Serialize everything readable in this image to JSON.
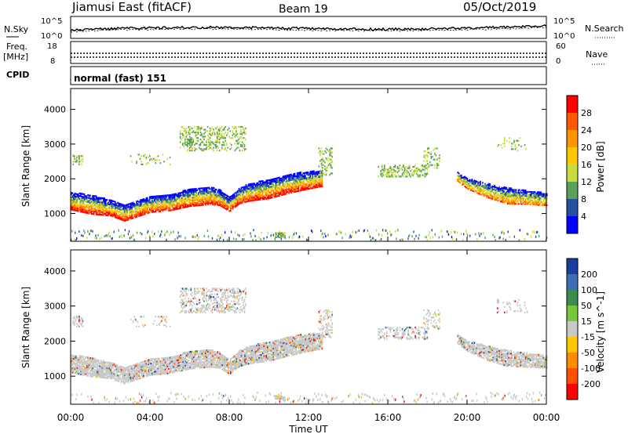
{
  "header": {
    "station": "Jiamusi East (fitACF)",
    "beam": "Beam 19",
    "date": "05/Oct/2019"
  },
  "noise_panel": {
    "left_label": "N.Sky",
    "right_label": "N.Search",
    "left_ticks": [
      "10^5",
      "10^0"
    ],
    "right_ticks": [
      "10^5",
      "10^0"
    ]
  },
  "freq_panel": {
    "left_label": "Freq.",
    "left_unit": "[MHz]",
    "right_label": "Nave",
    "left_ticks": [
      "18",
      "8"
    ],
    "right_ticks": [
      "60",
      "0"
    ],
    "cpid_label": "CPID"
  },
  "cpid_text": "normal (fast) 151",
  "chart_data": {
    "type": "heatmap",
    "xlabel": "Time UT",
    "x_ticks": [
      "00:00",
      "04:00",
      "08:00",
      "12:00",
      "16:00",
      "20:00",
      "00:00"
    ],
    "x_range_hours": [
      0,
      24
    ],
    "panels": [
      {
        "name": "power",
        "ylabel": "Slant Range [km]",
        "y_ticks": [
          "4000",
          "3000",
          "2000",
          "1000"
        ],
        "ylim": [
          200,
          4600
        ],
        "colorbar_label": "Power [dB]",
        "colorbar_ticks": [
          "28",
          "24",
          "20",
          "16",
          "12",
          "8",
          "4"
        ],
        "colorbar_colors": [
          "#ff0000",
          "#ff5a00",
          "#ff9400",
          "#ffc800",
          "#c8dc3c",
          "#5aa05a",
          "#2850a0",
          "#0000ff"
        ],
        "colorbar_range": [
          0,
          30
        ]
      },
      {
        "name": "velocity",
        "ylabel": "Slant Range [km]",
        "y_ticks": [
          "4000",
          "3000",
          "2000",
          "1000"
        ],
        "ylim": [
          200,
          4600
        ],
        "colorbar_label": "Velocity [m s^-1]",
        "colorbar_ticks": [
          "200",
          "100",
          "50",
          "15",
          "-15",
          "-50",
          "-100",
          "-200"
        ],
        "colorbar_colors": [
          "#1e3ca0",
          "#3c6eb4",
          "#3c8c50",
          "#78c83c",
          "#c8c8c8",
          "#ffc800",
          "#ff8c00",
          "#ff5000",
          "#ff0000"
        ]
      }
    ],
    "echo_band": {
      "time_h": [
        0,
        1,
        2,
        2.7,
        4,
        5,
        6,
        7,
        7.5,
        8,
        8.5,
        9,
        10,
        11,
        12,
        12.7
      ],
      "center_km": [
        1350,
        1250,
        1150,
        1000,
        1250,
        1300,
        1450,
        1500,
        1450,
        1250,
        1500,
        1600,
        1700,
        1850,
        1950,
        2000
      ],
      "width_km": [
        500,
        550,
        450,
        450,
        450,
        450,
        500,
        500,
        450,
        400,
        450,
        500,
        550,
        550,
        500,
        450
      ]
    },
    "late_band": {
      "time_h": [
        19.5,
        20,
        21,
        22,
        23,
        24
      ],
      "center_km": [
        2050,
        1850,
        1650,
        1500,
        1450,
        1400
      ],
      "width_km": [
        250,
        300,
        400,
        450,
        400,
        350
      ]
    }
  }
}
